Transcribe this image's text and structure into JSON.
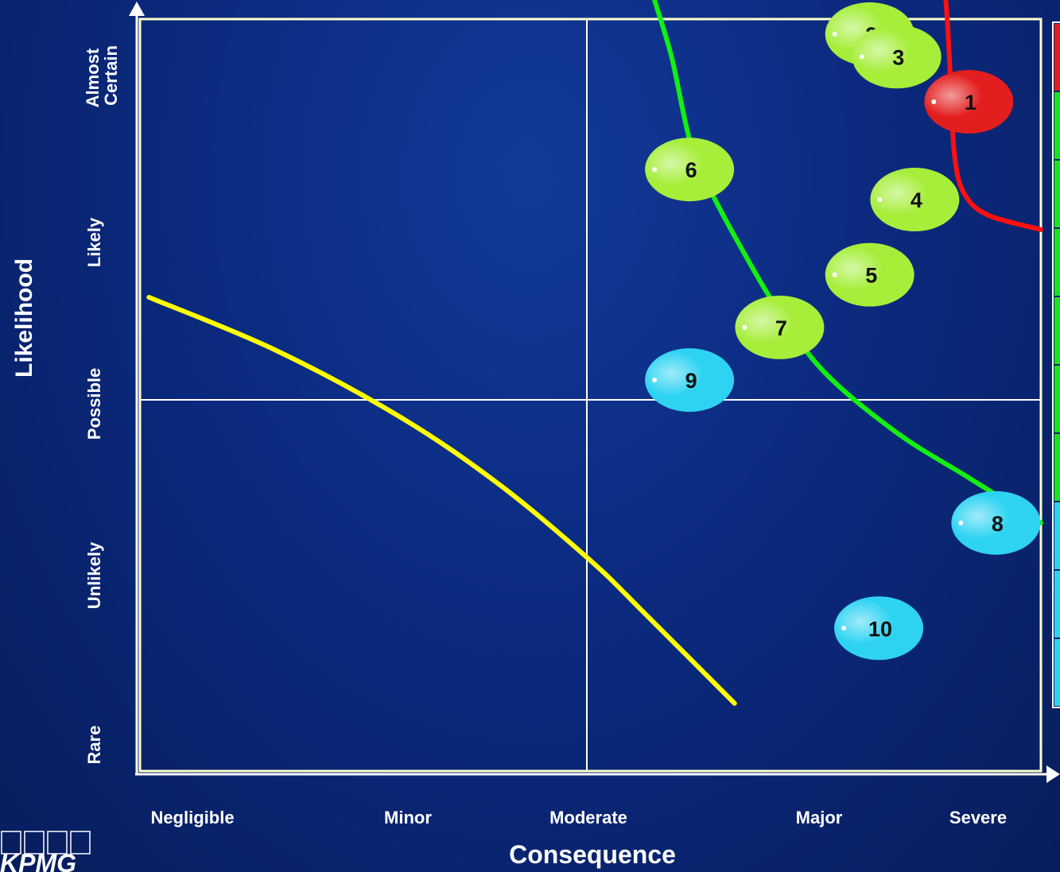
{
  "logo": {
    "text": "KPMG"
  },
  "chart_data": {
    "type": "scatter",
    "xlabel": "Consequence",
    "ylabel": "Likelihood",
    "x_categories": [
      "Negligible",
      "Minor",
      "Moderate",
      "Major",
      "Severe"
    ],
    "y_categories": [
      "Rare",
      "Unlikely",
      "Possible",
      "Likely",
      "Almost Certain"
    ],
    "grid": true,
    "points": [
      {
        "label": "1",
        "consequence": 4.6,
        "likelihood": 4.45,
        "color": "#e31e1e"
      },
      {
        "label": "2",
        "consequence": 4.05,
        "likelihood": 4.9,
        "color": "#a6ee3a"
      },
      {
        "label": "3",
        "consequence": 4.2,
        "likelihood": 4.75,
        "color": "#a6ee3a"
      },
      {
        "label": "4",
        "consequence": 4.3,
        "likelihood": 3.8,
        "color": "#a6ee3a"
      },
      {
        "label": "5",
        "consequence": 4.05,
        "likelihood": 3.3,
        "color": "#a6ee3a"
      },
      {
        "label": "6",
        "consequence": 3.05,
        "likelihood": 4.0,
        "color": "#a6ee3a"
      },
      {
        "label": "7",
        "consequence": 3.55,
        "likelihood": 2.95,
        "color": "#a6ee3a"
      },
      {
        "label": "8",
        "consequence": 4.75,
        "likelihood": 1.65,
        "color": "#2fd3f2"
      },
      {
        "label": "9",
        "consequence": 3.05,
        "likelihood": 2.6,
        "color": "#2fd3f2"
      },
      {
        "label": "10",
        "consequence": 4.1,
        "likelihood": 0.95,
        "color": "#2fd3f2"
      }
    ],
    "curves": [
      {
        "color": "#ffff00",
        "points": [
          [
            0.05,
            3.15
          ],
          [
            0.75,
            2.8
          ],
          [
            1.45,
            2.35
          ],
          [
            2.0,
            1.9
          ],
          [
            2.5,
            1.4
          ],
          [
            2.8,
            1.05
          ],
          [
            3.3,
            0.45
          ]
        ]
      },
      {
        "color": "#12f012",
        "points": [
          [
            2.78,
            5.45
          ],
          [
            2.85,
            5.15
          ],
          [
            2.95,
            4.75
          ],
          [
            3.05,
            4.2
          ],
          [
            3.15,
            3.9
          ],
          [
            3.35,
            3.45
          ],
          [
            3.55,
            3.05
          ],
          [
            3.8,
            2.65
          ],
          [
            4.2,
            2.25
          ],
          [
            4.6,
            1.95
          ],
          [
            5.0,
            1.65
          ]
        ]
      },
      {
        "color": "#ff1010",
        "points": [
          [
            4.45,
            5.45
          ],
          [
            4.48,
            5.0
          ],
          [
            4.5,
            4.55
          ],
          [
            4.52,
            4.1
          ],
          [
            4.57,
            3.85
          ],
          [
            4.7,
            3.7
          ],
          [
            5.0,
            3.6
          ]
        ]
      }
    ],
    "legend_colors": [
      "#e31e1e",
      "#19e619",
      "#2fd3f2"
    ]
  }
}
